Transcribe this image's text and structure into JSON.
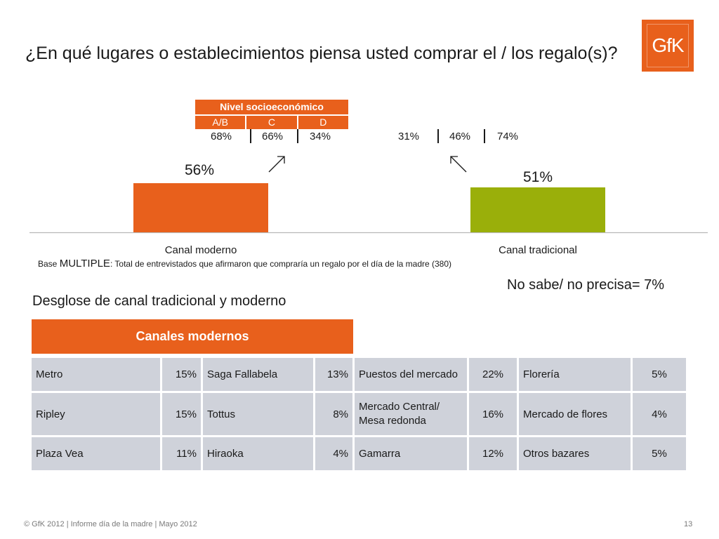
{
  "title": "¿En qué lugares o establecimientos piensa usted comprar el / los regalo(s)?",
  "logo": "GfK",
  "nse": {
    "header": "Nivel socioeconómico",
    "columns": [
      "A/B",
      "C",
      "D"
    ],
    "moderno": [
      "68%",
      "66%",
      "34%"
    ],
    "tradicional": [
      "31%",
      "46%",
      "74%"
    ]
  },
  "chart_data": {
    "type": "bar",
    "categories": [
      "Canal moderno",
      "Canal tradicional"
    ],
    "values": [
      56,
      51
    ],
    "labels": [
      "56%",
      "51%"
    ],
    "colors": [
      "#e8601c",
      "#9aaf0a"
    ],
    "ylim": [
      0,
      100
    ]
  },
  "base": {
    "prefix": "Base",
    "strong": "MULTIPLE",
    "text": ":  Total de entrevistados que afirmaron que compraría un regalo por el día de la madre (380)"
  },
  "no_sabe": "No sabe/ no precisa= 7%",
  "desglose_title": "Desglose de canal tradicional y moderno",
  "modern_header": "Canales modernos",
  "table": {
    "rows": [
      [
        "Metro",
        "15%",
        " Saga Fallabela",
        "13%",
        "Puestos del mercado",
        "22%",
        "Florería",
        "5%"
      ],
      [
        " Ripley",
        "15%",
        "Tottus",
        "8%",
        "Mercado Central/ Mesa redonda",
        "16%",
        "Mercado de flores",
        "4%"
      ],
      [
        "Plaza Vea",
        "11%",
        "Hiraoka",
        "4%",
        "Gamarra",
        "12%",
        "Otros bazares",
        "5%"
      ]
    ]
  },
  "footer": "© GfK 2012 | Informe día de la madre | Mayo 2012",
  "page_number": "13"
}
